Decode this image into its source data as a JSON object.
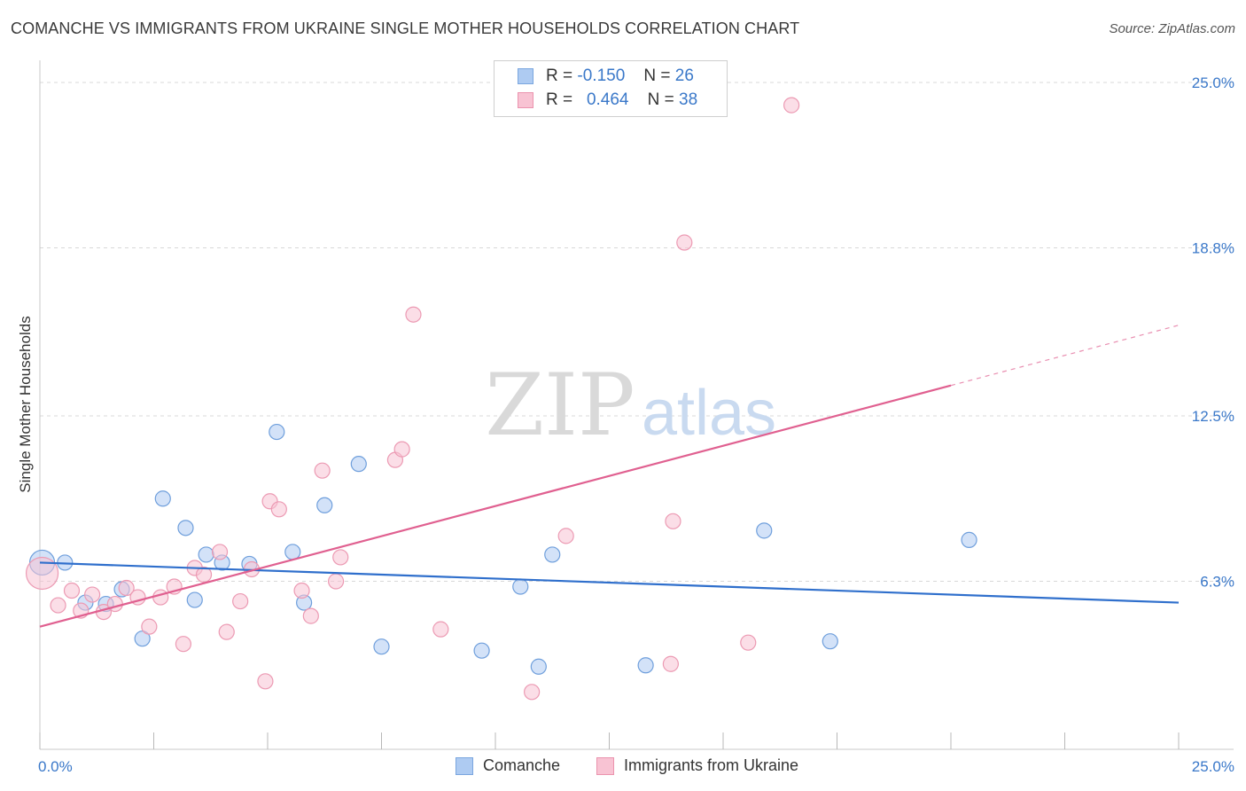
{
  "title": "COMANCHE VS IMMIGRANTS FROM UKRAINE SINGLE MOTHER HOUSEHOLDS CORRELATION CHART",
  "source": "Source: ZipAtlas.com",
  "watermark": {
    "zip": "ZIP",
    "atlas": "atlas"
  },
  "legend": {
    "rows": [
      {
        "r_label": "R =",
        "r_value": "-0.150",
        "n_label": "N =",
        "n_value": "26",
        "color": "#aecbf2",
        "border": "#7aa6df"
      },
      {
        "r_label": "R =",
        "r_value": "0.464",
        "n_label": "N =",
        "n_value": "38",
        "color": "#f8c3d3",
        "border": "#eb93ae"
      }
    ]
  },
  "bottom_legend": [
    "Comanche",
    "Immigrants from Ukraine"
  ],
  "chart_data": {
    "type": "scatter",
    "ylabel": "Single Mother Households",
    "xlim": [
      0,
      25
    ],
    "ylim": [
      0,
      25.5
    ],
    "x_tick_labels": [
      {
        "value": 0,
        "label": "0.0%"
      },
      {
        "value": 25,
        "label": "25.0%"
      }
    ],
    "y_tick_labels": [
      {
        "value": 6.3,
        "label": "6.3%"
      },
      {
        "value": 12.5,
        "label": "12.5%"
      },
      {
        "value": 18.8,
        "label": "18.8%"
      },
      {
        "value": 25.0,
        "label": "25.0%"
      }
    ],
    "grid": "horizontal dashed",
    "series": [
      {
        "name": "Comanche",
        "color": "#aecbf2",
        "stroke": "#6f9fdc",
        "trend_color": "#2f6fcc",
        "points": [
          {
            "x": 0.05,
            "y": 7.0,
            "s": 14
          },
          {
            "x": 0.55,
            "y": 7.0
          },
          {
            "x": 1.0,
            "y": 5.5
          },
          {
            "x": 1.45,
            "y": 5.45
          },
          {
            "x": 1.8,
            "y": 6.0
          },
          {
            "x": 2.25,
            "y": 4.15
          },
          {
            "x": 2.7,
            "y": 9.4
          },
          {
            "x": 3.2,
            "y": 8.3
          },
          {
            "x": 3.4,
            "y": 5.6
          },
          {
            "x": 3.65,
            "y": 7.3
          },
          {
            "x": 4.0,
            "y": 7.0
          },
          {
            "x": 4.6,
            "y": 6.95
          },
          {
            "x": 5.2,
            "y": 11.9
          },
          {
            "x": 5.55,
            "y": 7.4
          },
          {
            "x": 5.8,
            "y": 5.5
          },
          {
            "x": 6.25,
            "y": 9.15
          },
          {
            "x": 7.0,
            "y": 10.7
          },
          {
            "x": 7.5,
            "y": 3.85
          },
          {
            "x": 9.7,
            "y": 3.7
          },
          {
            "x": 10.55,
            "y": 6.1
          },
          {
            "x": 10.95,
            "y": 3.1
          },
          {
            "x": 11.25,
            "y": 7.3
          },
          {
            "x": 13.3,
            "y": 3.15
          },
          {
            "x": 15.9,
            "y": 8.2
          },
          {
            "x": 17.35,
            "y": 4.05
          },
          {
            "x": 20.4,
            "y": 7.85
          }
        ],
        "trend": {
          "x0": 0,
          "y0": 7.0,
          "x1": 25,
          "y1": 5.5,
          "dash_from": null
        }
      },
      {
        "name": "Immigrants from Ukraine",
        "color": "#f8c3d3",
        "stroke": "#ec9ab3",
        "trend_color": "#e06090",
        "points": [
          {
            "x": 0.05,
            "y": 6.6,
            "s": 18
          },
          {
            "x": 0.4,
            "y": 5.4
          },
          {
            "x": 0.7,
            "y": 5.95
          },
          {
            "x": 0.9,
            "y": 5.2
          },
          {
            "x": 1.15,
            "y": 5.8
          },
          {
            "x": 1.4,
            "y": 5.15
          },
          {
            "x": 1.65,
            "y": 5.45
          },
          {
            "x": 1.9,
            "y": 6.05
          },
          {
            "x": 2.15,
            "y": 5.7
          },
          {
            "x": 2.4,
            "y": 4.6
          },
          {
            "x": 2.65,
            "y": 5.7
          },
          {
            "x": 2.95,
            "y": 6.1
          },
          {
            "x": 3.15,
            "y": 3.95
          },
          {
            "x": 3.4,
            "y": 6.8
          },
          {
            "x": 3.6,
            "y": 6.55
          },
          {
            "x": 3.95,
            "y": 7.4
          },
          {
            "x": 4.1,
            "y": 4.4
          },
          {
            "x": 4.4,
            "y": 5.55
          },
          {
            "x": 4.65,
            "y": 6.75
          },
          {
            "x": 4.95,
            "y": 2.55
          },
          {
            "x": 5.05,
            "y": 9.3
          },
          {
            "x": 5.25,
            "y": 9.0
          },
          {
            "x": 5.75,
            "y": 5.95
          },
          {
            "x": 5.95,
            "y": 5.0
          },
          {
            "x": 6.2,
            "y": 10.45
          },
          {
            "x": 6.5,
            "y": 6.3
          },
          {
            "x": 6.6,
            "y": 7.2
          },
          {
            "x": 7.8,
            "y": 10.85
          },
          {
            "x": 7.95,
            "y": 11.25
          },
          {
            "x": 8.2,
            "y": 16.3
          },
          {
            "x": 8.8,
            "y": 4.5
          },
          {
            "x": 10.8,
            "y": 2.15
          },
          {
            "x": 11.55,
            "y": 8.0
          },
          {
            "x": 13.85,
            "y": 3.2
          },
          {
            "x": 13.9,
            "y": 8.55
          },
          {
            "x": 14.15,
            "y": 19.0
          },
          {
            "x": 15.55,
            "y": 4.0
          },
          {
            "x": 16.5,
            "y": 24.15
          }
        ],
        "trend": {
          "x0": 0,
          "y0": 4.6,
          "x1": 25,
          "y1": 15.9,
          "dash_from": 20
        }
      }
    ]
  }
}
